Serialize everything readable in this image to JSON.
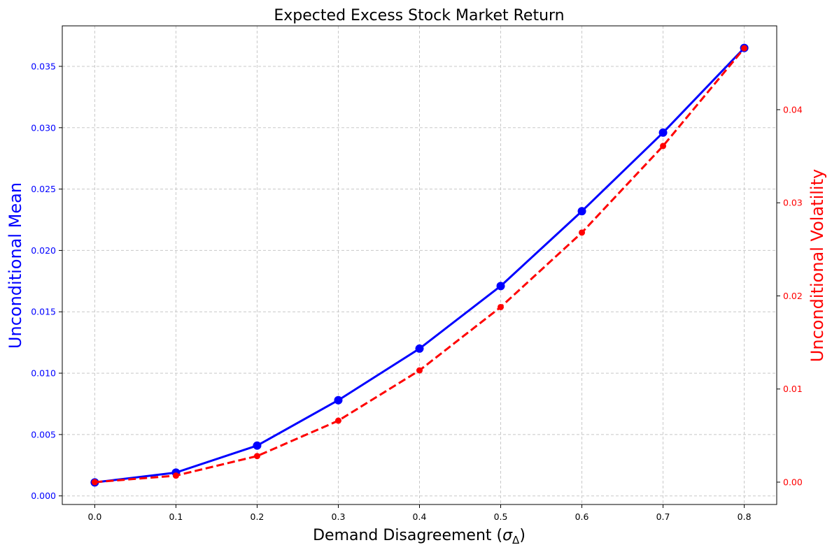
{
  "chart_data": {
    "type": "line",
    "title": "Expected Excess Stock Market Return",
    "xlabel": "Demand Disagreement (",
    "xlabel_symbol": "σ",
    "xlabel_subscript": "Δ",
    "xlabel_close": ")",
    "ylabel_left": "Unconditional Mean",
    "ylabel_right": "Unconditional Volatility",
    "grid": true,
    "x": [
      0.0,
      0.1,
      0.2,
      0.3,
      0.4,
      0.5,
      0.6,
      0.7,
      0.8
    ],
    "xticks": [
      "0.0",
      "0.1",
      "0.2",
      "0.3",
      "0.4",
      "0.5",
      "0.6",
      "0.7",
      "0.8"
    ],
    "xlim": [
      -0.04,
      0.84
    ],
    "series": [
      {
        "axis": "left",
        "color": "#0000ff",
        "style": "solid",
        "marker": "circle",
        "values": [
          0.0011,
          0.0019,
          0.0041,
          0.0078,
          0.012,
          0.0171,
          0.0232,
          0.0296,
          0.0365
        ]
      },
      {
        "axis": "right",
        "color": "#ff0000",
        "style": "dashed",
        "marker": "circle",
        "values": [
          0.0,
          0.0007,
          0.0028,
          0.0066,
          0.012,
          0.0188,
          0.0268,
          0.0361,
          0.0466
        ]
      }
    ],
    "y_left": {
      "ylim": [
        -0.0007,
        0.0383
      ],
      "ticks": [
        0.0,
        0.005,
        0.01,
        0.015,
        0.02,
        0.025,
        0.03,
        0.035
      ],
      "ticklabels": [
        "0.000",
        "0.005",
        "0.010",
        "0.015",
        "0.020",
        "0.025",
        "0.030",
        "0.035"
      ],
      "color": "#0000ff"
    },
    "y_right": {
      "ylim": [
        -0.0024,
        0.049
      ],
      "ticks": [
        0.0,
        0.01,
        0.02,
        0.03,
        0.04
      ],
      "ticklabels": [
        "0.00",
        "0.01",
        "0.02",
        "0.03",
        "0.04"
      ],
      "color": "#ff0000"
    }
  }
}
